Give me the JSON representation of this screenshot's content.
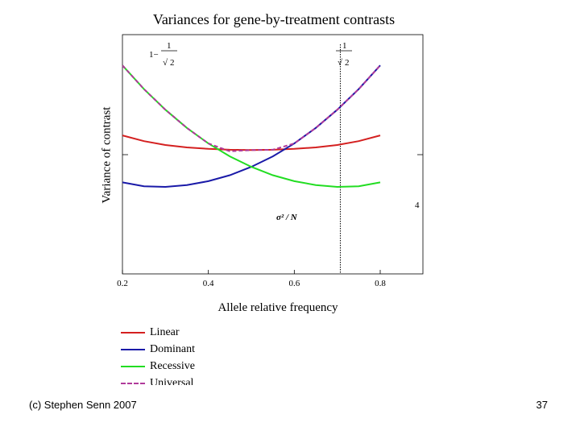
{
  "slide": {
    "footer_left": "(c) Stephen Senn 2007",
    "page_number": "37"
  },
  "chart_data": {
    "type": "line",
    "title": "Variances for gene-by-treatment contrasts",
    "xlabel": "Allele relative frequency",
    "ylabel": "Variance of contrast",
    "xlim": [
      0.2,
      0.8
    ],
    "x_ticks": [
      "0.2",
      "0.4",
      "0.6",
      "0.8"
    ],
    "vline": {
      "x": 0.7071
    },
    "annotations": {
      "left_top": {
        "prefix": "1−",
        "numerator": "1",
        "denominator": "2"
      },
      "right_top": {
        "numerator": "1",
        "denominator": "2"
      },
      "right_margin": "4",
      "sigma": "σ² / N"
    },
    "x": [
      0.2,
      0.25,
      0.3,
      0.35,
      0.4,
      0.45,
      0.5,
      0.55,
      0.6,
      0.65,
      0.7,
      0.75,
      0.8
    ],
    "series": [
      {
        "name": "Linear",
        "color": "#d42020",
        "dash": "none",
        "values": [
          3.13,
          2.94,
          2.81,
          2.73,
          2.68,
          2.65,
          2.64,
          2.65,
          2.68,
          2.73,
          2.81,
          2.94,
          3.13
        ]
      },
      {
        "name": "Dominant",
        "color": "#1a1aa8",
        "dash": "none",
        "values": [
          1.56,
          1.43,
          1.41,
          1.47,
          1.6,
          1.8,
          2.08,
          2.43,
          2.86,
          3.38,
          3.99,
          4.68,
          5.47
        ]
      },
      {
        "name": "Recessive",
        "color": "#22dd22",
        "dash": "none",
        "values": [
          5.47,
          4.68,
          3.99,
          3.38,
          2.86,
          2.43,
          2.08,
          1.8,
          1.6,
          1.47,
          1.41,
          1.43,
          1.56
        ]
      },
      {
        "name": "Universal",
        "color": "#b03a9a",
        "dash": "5,3",
        "values": [
          5.47,
          4.68,
          3.99,
          3.38,
          2.86,
          2.6,
          2.64,
          2.65,
          2.86,
          3.38,
          3.99,
          4.68,
          5.47
        ]
      }
    ],
    "ylim": [
      -1.5,
      6.5
    ],
    "legend": "bottom-left"
  }
}
